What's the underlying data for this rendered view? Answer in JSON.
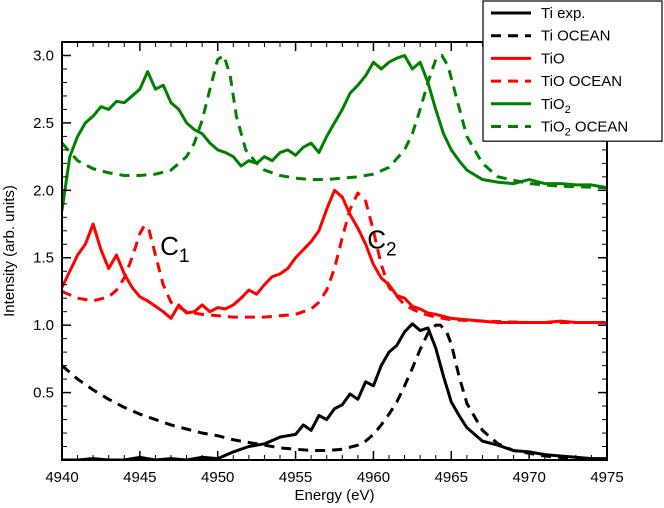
{
  "chart_data": {
    "type": "line",
    "xlabel": "Energy (eV)",
    "ylabel": "Intensity (arb. units)",
    "xlim": [
      4940,
      4975
    ],
    "ylim": [
      0,
      3.1
    ],
    "xticks": [
      4940,
      4945,
      4950,
      4955,
      4960,
      4965,
      4970,
      4975
    ],
    "xtick_labels": [
      "4940",
      "4945",
      "4950",
      "4955",
      "4960",
      "4965",
      "4970",
      "4975"
    ],
    "yticks": [
      0.5,
      1.0,
      1.5,
      2.0,
      2.5,
      3.0
    ],
    "ytick_labels": [
      "0.5",
      "1.0",
      "1.5",
      "2.0",
      "2.5",
      "3.0"
    ],
    "grid": false,
    "legend_position": "top-right",
    "annotations": [
      {
        "main": "C",
        "sub": "1",
        "x": 4946.3,
        "y": 1.52
      },
      {
        "main": "C",
        "sub": "2",
        "x": 4959.6,
        "y": 1.57
      }
    ],
    "series": [
      {
        "name": "Ti exp.",
        "sub": "",
        "color": "#000000",
        "dash": false,
        "x": [
          4940,
          4941,
          4942,
          4943,
          4944,
          4945,
          4946,
          4947,
          4948,
          4949,
          4950,
          4951,
          4952,
          4953,
          4954,
          4955,
          4955.5,
          4956,
          4956.5,
          4957,
          4957.5,
          4958,
          4958.5,
          4959,
          4959.5,
          4960,
          4960.5,
          4961,
          4961.5,
          4962,
          4962.5,
          4963,
          4963.5,
          4964,
          4964.5,
          4965,
          4965.5,
          4966,
          4966.5,
          4967,
          4968,
          4969,
          4970,
          4971,
          4972,
          4973,
          4974,
          4975
        ],
        "y": [
          0.0,
          0.0,
          0.01,
          0.0,
          0.0,
          0.02,
          0.0,
          0.01,
          0.0,
          0.02,
          0.01,
          0.06,
          0.1,
          0.12,
          0.17,
          0.19,
          0.26,
          0.22,
          0.33,
          0.3,
          0.38,
          0.41,
          0.49,
          0.45,
          0.58,
          0.55,
          0.7,
          0.8,
          0.85,
          0.95,
          1.01,
          0.96,
          0.98,
          0.83,
          0.62,
          0.43,
          0.33,
          0.24,
          0.19,
          0.14,
          0.11,
          0.07,
          0.06,
          0.04,
          0.03,
          0.02,
          0.01,
          0.01
        ]
      },
      {
        "name": "Ti OCEAN",
        "sub": "",
        "color": "#000000",
        "dash": true,
        "x": [
          4940,
          4941,
          4942,
          4943,
          4944,
          4945,
          4946,
          4947,
          4948,
          4949,
          4950,
          4951,
          4952,
          4953,
          4954,
          4955,
          4956,
          4957,
          4958,
          4959,
          4959.5,
          4960,
          4960.5,
          4961,
          4961.5,
          4962,
          4962.5,
          4963,
          4963.5,
          4964,
          4964.3,
          4964.7,
          4965,
          4965.5,
          4966,
          4967,
          4968,
          4969,
          4970,
          4971,
          4972,
          4973,
          4974,
          4975
        ],
        "y": [
          0.7,
          0.6,
          0.52,
          0.45,
          0.39,
          0.34,
          0.3,
          0.26,
          0.23,
          0.2,
          0.18,
          0.15,
          0.13,
          0.11,
          0.09,
          0.08,
          0.07,
          0.07,
          0.08,
          0.11,
          0.14,
          0.19,
          0.26,
          0.34,
          0.43,
          0.55,
          0.68,
          0.82,
          0.94,
          1.0,
          1.0,
          0.95,
          0.86,
          0.62,
          0.42,
          0.22,
          0.12,
          0.07,
          0.05,
          0.03,
          0.02,
          0.01,
          0.01,
          0.0
        ]
      },
      {
        "name": "TiO",
        "sub": "",
        "color": "#ff0000",
        "dash": false,
        "x": [
          4940,
          4940.5,
          4941,
          4941.5,
          4942,
          4942.5,
          4943,
          4943.5,
          4944,
          4944.5,
          4945,
          4945.5,
          4946,
          4946.5,
          4947,
          4947.5,
          4948,
          4948.5,
          4949,
          4949.5,
          4950,
          4950.5,
          4951,
          4951.5,
          4952,
          4952.5,
          4953,
          4953.5,
          4954,
          4954.5,
          4955,
          4955.5,
          4956,
          4956.5,
          4957,
          4957.5,
          4958,
          4958.5,
          4959,
          4959.5,
          4960,
          4960.5,
          4961,
          4961.5,
          4962,
          4962.5,
          4963,
          4963.5,
          4964,
          4965,
          4966,
          4967,
          4968,
          4969,
          4970,
          4971,
          4972,
          4973,
          4974,
          4975
        ],
        "y": [
          1.28,
          1.4,
          1.52,
          1.6,
          1.75,
          1.56,
          1.42,
          1.52,
          1.38,
          1.28,
          1.21,
          1.18,
          1.14,
          1.1,
          1.05,
          1.15,
          1.09,
          1.1,
          1.15,
          1.1,
          1.13,
          1.12,
          1.15,
          1.2,
          1.26,
          1.23,
          1.3,
          1.36,
          1.38,
          1.42,
          1.5,
          1.56,
          1.62,
          1.7,
          1.86,
          2.0,
          1.95,
          1.82,
          1.72,
          1.6,
          1.45,
          1.35,
          1.3,
          1.22,
          1.2,
          1.14,
          1.12,
          1.09,
          1.08,
          1.05,
          1.04,
          1.03,
          1.02,
          1.02,
          1.02,
          1.02,
          1.03,
          1.02,
          1.02,
          1.02
        ]
      },
      {
        "name": "TiO OCEAN",
        "sub": "",
        "color": "#ff0000",
        "dash": true,
        "x": [
          4940,
          4941,
          4942,
          4943,
          4943.5,
          4944,
          4944.5,
          4945,
          4945.3,
          4945.6,
          4946,
          4946.5,
          4947,
          4948,
          4949,
          4950,
          4951,
          4952,
          4953,
          4954,
          4955,
          4956,
          4956.5,
          4957,
          4957.5,
          4958,
          4958.5,
          4959,
          4959.5,
          4960,
          4960.5,
          4961,
          4962,
          4963,
          4964,
          4965,
          4967,
          4970,
          4975
        ],
        "y": [
          1.25,
          1.2,
          1.18,
          1.21,
          1.26,
          1.35,
          1.5,
          1.68,
          1.74,
          1.7,
          1.52,
          1.3,
          1.17,
          1.1,
          1.08,
          1.07,
          1.06,
          1.06,
          1.06,
          1.07,
          1.08,
          1.12,
          1.17,
          1.26,
          1.42,
          1.65,
          1.86,
          1.98,
          1.92,
          1.7,
          1.45,
          1.28,
          1.15,
          1.09,
          1.06,
          1.04,
          1.03,
          1.02,
          1.02
        ]
      },
      {
        "name": "TiO",
        "sub": "2",
        "color": "#008000",
        "dash": false,
        "x": [
          4940,
          4940.5,
          4941,
          4941.5,
          4942,
          4942.5,
          4943,
          4943.5,
          4944,
          4944.5,
          4945,
          4945.5,
          4946,
          4946.5,
          4947,
          4947.5,
          4948,
          4948.5,
          4949,
          4949.5,
          4950,
          4950.5,
          4951,
          4951.5,
          4952,
          4952.5,
          4953,
          4953.5,
          4954,
          4954.5,
          4955,
          4955.5,
          4956,
          4956.5,
          4957,
          4957.5,
          4958,
          4958.5,
          4959,
          4959.5,
          4960,
          4960.5,
          4961,
          4961.5,
          4962,
          4962.5,
          4963,
          4963.5,
          4964,
          4964.5,
          4965,
          4965.5,
          4966,
          4967,
          4968,
          4969,
          4970,
          4971,
          4972,
          4973,
          4974,
          4975
        ],
        "y": [
          1.85,
          2.25,
          2.4,
          2.5,
          2.55,
          2.62,
          2.6,
          2.66,
          2.65,
          2.7,
          2.75,
          2.88,
          2.75,
          2.78,
          2.65,
          2.6,
          2.5,
          2.45,
          2.42,
          2.35,
          2.3,
          2.28,
          2.25,
          2.18,
          2.22,
          2.2,
          2.25,
          2.22,
          2.28,
          2.3,
          2.26,
          2.32,
          2.35,
          2.28,
          2.4,
          2.5,
          2.6,
          2.72,
          2.78,
          2.85,
          2.95,
          2.9,
          2.95,
          2.98,
          3.0,
          2.9,
          2.95,
          2.8,
          2.6,
          2.42,
          2.3,
          2.22,
          2.15,
          2.08,
          2.06,
          2.05,
          2.08,
          2.05,
          2.05,
          2.04,
          2.04,
          2.02
        ]
      },
      {
        "name": "TiO",
        "sub": "2",
        "suffix": " OCEAN",
        "color": "#008000",
        "dash": true,
        "x": [
          4940,
          4941,
          4942,
          4943,
          4944,
          4945,
          4946,
          4947,
          4948,
          4948.5,
          4949,
          4949.5,
          4950,
          4950.4,
          4950.8,
          4951.2,
          4951.8,
          4952.5,
          4953,
          4954,
          4955,
          4956,
          4957,
          4958,
          4959,
          4960,
          4961,
          4962,
          4962.5,
          4963,
          4963.5,
          4964,
          4964.4,
          4964.8,
          4965.3,
          4966,
          4967,
          4968,
          4970,
          4972,
          4975
        ],
        "y": [
          2.35,
          2.22,
          2.16,
          2.13,
          2.11,
          2.11,
          2.12,
          2.15,
          2.25,
          2.35,
          2.52,
          2.75,
          2.97,
          3.0,
          2.85,
          2.55,
          2.3,
          2.2,
          2.15,
          2.11,
          2.09,
          2.08,
          2.08,
          2.09,
          2.1,
          2.12,
          2.17,
          2.3,
          2.42,
          2.6,
          2.8,
          2.97,
          3.0,
          2.92,
          2.7,
          2.4,
          2.2,
          2.1,
          2.05,
          2.03,
          2.02
        ]
      }
    ]
  }
}
